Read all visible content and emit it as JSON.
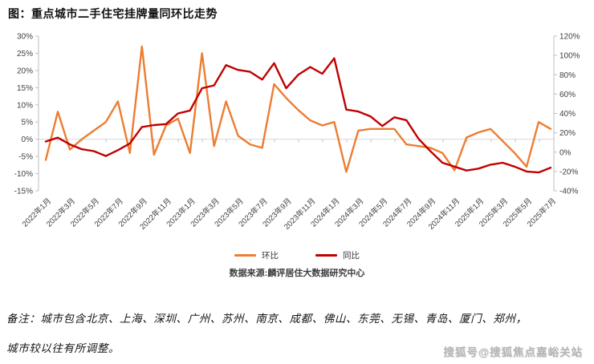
{
  "title": "图：重点城市二手住宅挂牌量同环比走势",
  "source": "数据来源:麟评居住大数据研究中心",
  "notes": {
    "line1": "备注：城市包含北京、上海、深圳、广州、苏州、南京、成都、佛山、东莞、无锡、青岛、厦门、郑州，",
    "line2": "城市较以往有所调整。"
  },
  "watermark": "搜狐号@搜狐焦点嘉峪关站",
  "legend": [
    {
      "label": "环比",
      "color": "#ED7D31"
    },
    {
      "label": "同比",
      "color": "#C00000"
    }
  ],
  "colors": {
    "huanbi": "#ED7D31",
    "tongbi": "#C00000",
    "axis_line": "#BFBFBF",
    "gridline": "#D9D9D9",
    "axis_text": "#404040",
    "title_text": "#111111"
  },
  "chart_data": {
    "type": "line",
    "title": "重点城市二手住宅挂牌量同环比走势",
    "months": [
      "2022年1月",
      "2022年2月",
      "2022年3月",
      "2022年4月",
      "2022年5月",
      "2022年6月",
      "2022年7月",
      "2022年8月",
      "2022年9月",
      "2022年10月",
      "2022年11月",
      "2022年12月",
      "2023年1月",
      "2023年2月",
      "2023年3月",
      "2023年4月",
      "2023年5月",
      "2023年6月",
      "2023年7月",
      "2023年8月",
      "2023年9月",
      "2023年10月",
      "2023年11月",
      "2023年12月",
      "2024年1月",
      "2024年2月",
      "2024年3月",
      "2024年4月",
      "2024年5月",
      "2024年6月",
      "2024年7月",
      "2024年8月",
      "2024年9月",
      "2024年10月",
      "2024年11月",
      "2024年12月",
      "2025年1月",
      "2025年2月",
      "2025年3月",
      "2025年4月",
      "2025年5月",
      "2025年6月",
      "2025年7月"
    ],
    "x_tick_labels": [
      "2022年1月",
      "2022年3月",
      "2022年5月",
      "2022年7月",
      "2022年9月",
      "2022年11月",
      "2023年1月",
      "2023年3月",
      "2023年5月",
      "2023年7月",
      "2023年9月",
      "2023年11月",
      "2024年1月",
      "2024年3月",
      "2024年5月",
      "2024年7月",
      "2024年9月",
      "2024年11月",
      "2025年1月",
      "2025年3月",
      "2025年5月",
      "2025年7月"
    ],
    "series": [
      {
        "name": "环比",
        "axis": "left",
        "color": "#ED7D31",
        "values": [
          -6,
          8,
          -3,
          0,
          2.5,
          5,
          11,
          -4,
          27,
          -4.5,
          4,
          6,
          -4,
          25,
          -2,
          11,
          1,
          -1.5,
          -2.5,
          16,
          12,
          8.5,
          5.5,
          4,
          5,
          -9.5,
          2.5,
          3,
          3,
          3,
          -1.5,
          -2,
          -2.5,
          -4,
          -9,
          0.5,
          2,
          3,
          -0.5,
          -4,
          -8,
          5,
          3
        ]
      },
      {
        "name": "同比",
        "axis": "right",
        "color": "#C00000",
        "values": [
          11,
          15,
          8,
          3,
          1,
          -4,
          2,
          9,
          26,
          28,
          29,
          40,
          43,
          66,
          69,
          90,
          85,
          83,
          75,
          92,
          66,
          80,
          88,
          81,
          97,
          44,
          42,
          37,
          27,
          36,
          33,
          14,
          1,
          -11,
          -15,
          -19,
          -17,
          -13,
          -11,
          -15,
          -20,
          -21,
          -16
        ]
      }
    ],
    "left_axis": {
      "min": -15,
      "max": 30,
      "step": 5,
      "tick_labels": [
        "30%",
        "25%",
        "20%",
        "15%",
        "10%",
        "5%",
        "0%",
        "-5%",
        "-10%",
        "-15%"
      ],
      "format": "percent"
    },
    "right_axis": {
      "min": -40,
      "max": 120,
      "step": 20,
      "tick_labels": [
        "120%",
        "100%",
        "80%",
        "60%",
        "40%",
        "20%",
        "0%",
        "-20%",
        "-40%"
      ],
      "format": "percent"
    },
    "grid": "single horizontal category-axis line at left-axis 0%",
    "legend_position": "bottom-center"
  }
}
